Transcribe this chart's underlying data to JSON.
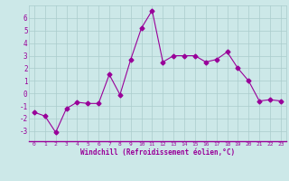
{
  "x": [
    0,
    1,
    2,
    3,
    4,
    5,
    6,
    7,
    8,
    9,
    10,
    11,
    12,
    13,
    14,
    15,
    16,
    17,
    18,
    19,
    20,
    21,
    22,
    23
  ],
  "y": [
    -1.5,
    -1.8,
    -3.1,
    -1.2,
    -0.7,
    -0.8,
    -0.8,
    1.5,
    -0.1,
    2.7,
    5.2,
    6.6,
    2.5,
    3.0,
    3.0,
    3.0,
    2.5,
    2.7,
    3.3,
    2.0,
    1.0,
    -0.6,
    -0.5,
    -0.6
  ],
  "line_color": "#990099",
  "marker": "D",
  "marker_size": 2.5,
  "line_width": 0.8,
  "bg_color": "#cce8e8",
  "grid_color": "#aacccc",
  "xlabel": "Windchill (Refroidissement éolien,°C)",
  "xlabel_color": "#990099",
  "tick_color": "#990099",
  "ylabel_ticks": [
    -3,
    -2,
    -1,
    0,
    1,
    2,
    3,
    4,
    5,
    6
  ],
  "xlim": [
    -0.5,
    23.5
  ],
  "ylim": [
    -3.8,
    7.0
  ],
  "title": ""
}
